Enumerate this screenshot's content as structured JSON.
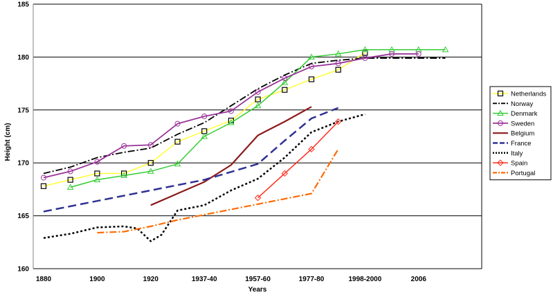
{
  "chart_data": {
    "type": "line",
    "xlabel": "Years",
    "ylabel": "Height (cm)",
    "ylim": [
      160,
      185
    ],
    "yticks": [
      160,
      165,
      170,
      175,
      180,
      185
    ],
    "xlim": [
      0,
      11
    ],
    "xticks": [
      {
        "pos": 0,
        "label": "1880"
      },
      {
        "pos": 1,
        "label": "1900"
      },
      {
        "pos": 2,
        "label": "1920"
      },
      {
        "pos": 3,
        "label": "1937-40"
      },
      {
        "pos": 4,
        "label": "1957-60"
      },
      {
        "pos": 5,
        "label": "1977-80"
      },
      {
        "pos": 6,
        "label": "1998-2000"
      },
      {
        "pos": 7,
        "label": "2006"
      }
    ],
    "grid": "horizontal",
    "legend_position": "right",
    "series": [
      {
        "name": "Netherlands",
        "color": "#ffff33",
        "dash": "solid",
        "width": 1.5,
        "marker": "square",
        "x": [
          0,
          0.5,
          1,
          1.5,
          2,
          2.5,
          3,
          3.5,
          4,
          4.5,
          5,
          5.5,
          6
        ],
        "y": [
          167.8,
          168.4,
          169.0,
          169.0,
          170.0,
          172.0,
          173.0,
          174.0,
          176.0,
          176.9,
          177.9,
          178.8,
          180.4
        ]
      },
      {
        "name": "Norway",
        "color": "#000000",
        "dash": "dashdot",
        "width": 1.8,
        "marker": "none",
        "x": [
          0,
          0.5,
          1,
          1.5,
          2,
          2.5,
          3,
          3.5,
          4,
          4.5,
          5,
          5.5,
          6,
          6.5,
          7,
          7.5
        ],
        "y": [
          169.0,
          169.6,
          170.5,
          171.0,
          171.4,
          172.7,
          173.8,
          175.4,
          177.0,
          178.3,
          179.4,
          179.7,
          179.9,
          179.9,
          179.9,
          179.9
        ]
      },
      {
        "name": "Denmark",
        "color": "#33cc33",
        "dash": "solid",
        "width": 1.5,
        "marker": "triangle",
        "x": [
          0.5,
          1,
          1.5,
          2,
          2.5,
          3,
          3.5,
          4,
          4.5,
          5,
          5.5,
          6,
          6.5,
          7,
          7.5
        ],
        "y": [
          167.7,
          168.4,
          168.8,
          169.2,
          169.9,
          172.5,
          173.8,
          175.4,
          177.6,
          180.0,
          180.3,
          180.7,
          180.7,
          180.7,
          180.7
        ]
      },
      {
        "name": "Sweden",
        "color": "#993399",
        "dash": "solid",
        "width": 1.8,
        "marker": "circle",
        "x": [
          0,
          0.5,
          1,
          1.5,
          2,
          2.5,
          3,
          3.5,
          4,
          4.5,
          5,
          5.5,
          6,
          6.5,
          7
        ],
        "y": [
          168.6,
          169.2,
          170.1,
          171.6,
          171.7,
          173.7,
          174.4,
          174.9,
          176.7,
          178.0,
          179.1,
          179.4,
          179.9,
          180.3,
          180.3
        ]
      },
      {
        "name": "Belgium",
        "color": "#8b1a1a",
        "dash": "solid",
        "width": 2.2,
        "marker": "none",
        "x": [
          2,
          3,
          3.5,
          4,
          4.5,
          5
        ],
        "y": [
          166.0,
          168.2,
          169.8,
          172.6,
          173.9,
          175.3
        ]
      },
      {
        "name": "France",
        "color": "#2e3192",
        "dash": "longdash",
        "width": 2.5,
        "marker": "none",
        "x": [
          0,
          1,
          2,
          3,
          4,
          4.5,
          5,
          5.5
        ],
        "y": [
          165.4,
          166.4,
          167.4,
          168.4,
          169.9,
          172.1,
          174.2,
          175.2
        ]
      },
      {
        "name": "Italy",
        "color": "#000000",
        "dash": "dotted",
        "width": 2.5,
        "marker": "none",
        "x": [
          0,
          0.5,
          1,
          1.5,
          1.75,
          2,
          2.2,
          2.5,
          3,
          3.5,
          4,
          4.5,
          5,
          5.5,
          6
        ],
        "y": [
          162.9,
          163.3,
          163.9,
          164.0,
          163.8,
          162.6,
          163.2,
          165.5,
          166.0,
          167.4,
          168.5,
          170.5,
          172.9,
          173.9,
          174.6
        ]
      },
      {
        "name": "Spain",
        "color": "#ff2a1a",
        "dash": "solid",
        "width": 1.5,
        "marker": "diamond",
        "x": [
          4,
          4.5,
          5,
          5.5
        ],
        "y": [
          166.7,
          169.0,
          171.3,
          173.9
        ]
      },
      {
        "name": "Portugal",
        "color": "#ff6a00",
        "dash": "dashdot",
        "width": 2.2,
        "marker": "none",
        "x": [
          1,
          1.5,
          2,
          2.5,
          3,
          3.5,
          4,
          4.5,
          5,
          5.5
        ],
        "y": [
          163.4,
          163.5,
          164.0,
          164.6,
          165.1,
          165.6,
          166.1,
          166.6,
          167.1,
          171.3
        ]
      }
    ]
  }
}
